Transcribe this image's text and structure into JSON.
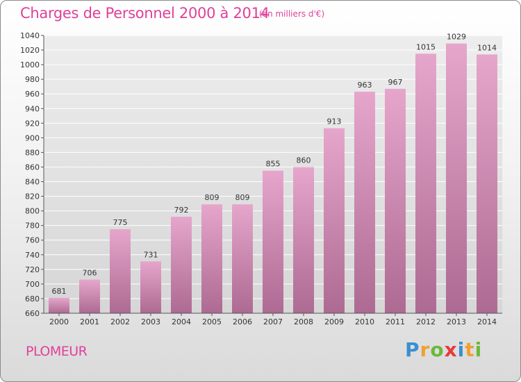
{
  "header": {
    "title": "Charges de Personnel 2000 à 2014",
    "subtitle": "(en milliers d'€)"
  },
  "footer": {
    "commune": "PLOMEUR",
    "logo": {
      "letters": [
        "P",
        "r",
        "o",
        "x",
        "i",
        "t",
        "i"
      ],
      "colors": [
        "#3a8fd1",
        "#f0a030",
        "#6cb83c",
        "#e83a3a",
        "#3a8fd1",
        "#f0a030",
        "#6cb83c"
      ]
    }
  },
  "chart_data": {
    "type": "bar",
    "title": "Charges de Personnel 2000 à 2014",
    "subtitle": "(en milliers d'€)",
    "categories": [
      "2000",
      "2001",
      "2002",
      "2003",
      "2004",
      "2005",
      "2006",
      "2007",
      "2008",
      "2009",
      "2010",
      "2011",
      "2012",
      "2013",
      "2014"
    ],
    "values": [
      681,
      706,
      775,
      731,
      792,
      809,
      809,
      855,
      860,
      913,
      963,
      967,
      1015,
      1029,
      1014
    ],
    "ylim": [
      660,
      1040
    ],
    "yticks": [
      660,
      680,
      700,
      720,
      740,
      760,
      780,
      800,
      820,
      840,
      860,
      880,
      900,
      920,
      940,
      960,
      980,
      1000,
      1020,
      1040
    ],
    "grid": true,
    "colors": {
      "bar_top": "#e6a6cc",
      "bar_bottom": "#ad6a92",
      "label": "#e0409a",
      "text": "#333333"
    }
  }
}
